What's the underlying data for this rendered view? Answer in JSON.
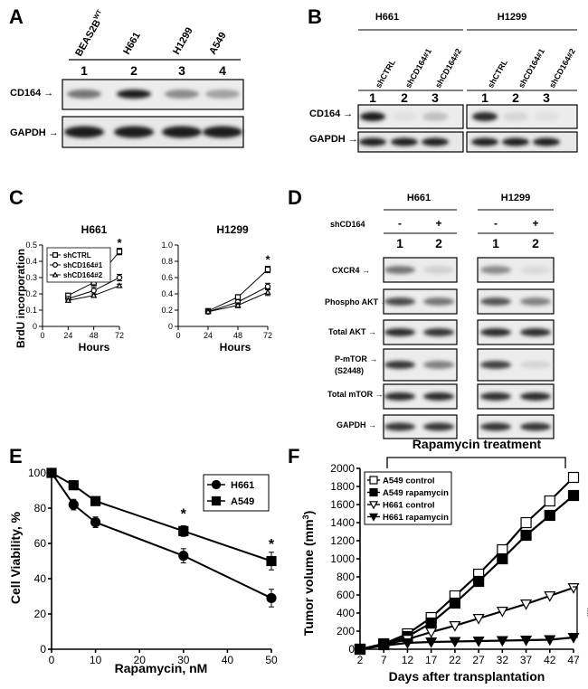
{
  "panelA": {
    "label": "A",
    "lanes": [
      "BEAS2B",
      "H661",
      "H1299",
      "A549"
    ],
    "lane_superscript": "WT",
    "lane_numbers": [
      "1",
      "2",
      "3",
      "4"
    ],
    "rows": [
      "CD164",
      "GAPDH"
    ],
    "cd164_intensity": [
      0.55,
      0.95,
      0.45,
      0.35
    ]
  },
  "panelB": {
    "label": "B",
    "groups": [
      "H661",
      "H1299"
    ],
    "lanes": [
      "shCTRL",
      "shCD164#1",
      "shCD164#2"
    ],
    "lane_numbers": [
      "1",
      "2",
      "3"
    ],
    "rows": [
      "CD164",
      "GAPDH"
    ],
    "cd164_intensity": [
      [
        0.95,
        0.05,
        0.2
      ],
      [
        0.9,
        0.1,
        0.05
      ]
    ]
  },
  "panelC": {
    "label": "C",
    "ylabel": "BrdU incorporation",
    "xlabel": "Hours",
    "legend": [
      "shCTRL",
      "shCD164#1",
      "shCD164#2"
    ],
    "star": "*"
  },
  "panelD": {
    "label": "D",
    "groups": [
      "H661",
      "H1299"
    ],
    "condition": "shCD164",
    "signs": [
      "-",
      "+",
      "-",
      "+"
    ],
    "lane_numbers": [
      "1",
      "2",
      "1",
      "2"
    ],
    "rows": [
      "CXCR4",
      "Phospho AKT",
      "Total AKT",
      "P-mTOR",
      "Total mTOR",
      "GAPDH"
    ],
    "ptor_sub": "(S2448)"
  },
  "panelE": {
    "label": "E",
    "ylabel": "Cell Viability, %",
    "xlabel": "Rapamycin, nM",
    "legend": [
      "H661",
      "A549"
    ],
    "star": "*"
  },
  "panelF": {
    "label": "F",
    "treatment": "Rapamycin treatment",
    "ylabel": "Tumor volume (mm",
    "ylabel_sup": "3",
    "ylabel_end": ")",
    "xlabel": "Days after transplantation",
    "legend": [
      "A549 control",
      "A549 rapamycin",
      "H661 control",
      "H661 rapamycin"
    ],
    "sig": "**"
  },
  "chart_data": [
    {
      "type": "line",
      "title": "H661",
      "xlabel": "Hours",
      "ylabel": "BrdU incorporation",
      "x": [
        0,
        24,
        48,
        72
      ],
      "xlim": [
        0,
        72
      ],
      "ylim": [
        0,
        0.5
      ],
      "yticks": [
        0,
        0.1,
        0.2,
        0.3,
        0.4,
        0.5
      ],
      "xticks": [
        0,
        24,
        48,
        72
      ],
      "legend_position": "upper-left",
      "series": [
        {
          "name": "shCTRL",
          "x": [
            24,
            48,
            72
          ],
          "values": [
            0.19,
            0.27,
            0.46
          ],
          "err": [
            0.01,
            0.02,
            0.02
          ]
        },
        {
          "name": "shCD164#1",
          "x": [
            24,
            48,
            72
          ],
          "values": [
            0.17,
            0.22,
            0.3
          ],
          "err": [
            0.01,
            0.02,
            0.02
          ]
        },
        {
          "name": "shCD164#2",
          "x": [
            24,
            48,
            72
          ],
          "values": [
            0.16,
            0.19,
            0.25
          ],
          "err": [
            0.01,
            0.01,
            0.01
          ]
        }
      ]
    },
    {
      "type": "line",
      "title": "H1299",
      "xlabel": "Hours",
      "x": [
        0,
        24,
        48,
        72
      ],
      "xlim": [
        0,
        72
      ],
      "ylim": [
        0,
        1.0
      ],
      "yticks": [
        0,
        0.2,
        0.4,
        0.6,
        0.8,
        1.0
      ],
      "xticks": [
        0,
        24,
        48,
        72
      ],
      "series": [
        {
          "name": "shCTRL",
          "x": [
            24,
            48,
            72
          ],
          "values": [
            0.19,
            0.36,
            0.7
          ],
          "err": [
            0.02,
            0.03,
            0.04
          ]
        },
        {
          "name": "shCD164#1",
          "x": [
            24,
            48,
            72
          ],
          "values": [
            0.18,
            0.3,
            0.49
          ],
          "err": [
            0.02,
            0.03,
            0.04
          ]
        },
        {
          "name": "shCD164#2",
          "x": [
            24,
            48,
            72
          ],
          "values": [
            0.18,
            0.26,
            0.42
          ],
          "err": [
            0.02,
            0.03,
            0.04
          ]
        }
      ]
    },
    {
      "type": "line",
      "xlabel": "Rapamycin, nM",
      "ylabel": "Cell Viability, %",
      "xlim": [
        0,
        50
      ],
      "ylim": [
        0,
        100
      ],
      "xticks": [
        0,
        10,
        20,
        30,
        40,
        50
      ],
      "yticks": [
        0,
        20,
        40,
        60,
        80,
        100
      ],
      "legend_position": "top-right",
      "series": [
        {
          "name": "H661",
          "x": [
            0,
            5,
            10,
            30,
            50
          ],
          "values": [
            100,
            82,
            72,
            53,
            29
          ],
          "err": [
            0,
            3,
            3,
            4,
            5
          ]
        },
        {
          "name": "A549",
          "x": [
            0,
            5,
            10,
            30,
            50
          ],
          "values": [
            100,
            93,
            84,
            67,
            50
          ],
          "err": [
            0,
            2,
            2,
            3,
            5
          ]
        }
      ]
    },
    {
      "type": "line",
      "xlabel": "Days after transplantation",
      "ylabel": "Tumor volume (mm3)",
      "xlim": [
        2,
        47
      ],
      "ylim": [
        0,
        2000
      ],
      "xticks": [
        2,
        7,
        12,
        17,
        22,
        27,
        32,
        37,
        42,
        47
      ],
      "yticks": [
        0,
        200,
        400,
        600,
        800,
        1000,
        1200,
        1400,
        1600,
        1800,
        2000
      ],
      "legend_position": "top-left",
      "series": [
        {
          "name": "A549 control",
          "x": [
            2,
            7,
            12,
            17,
            22,
            27,
            32,
            37,
            42,
            47
          ],
          "values": [
            0,
            60,
            170,
            350,
            590,
            830,
            1100,
            1400,
            1640,
            1900
          ]
        },
        {
          "name": "A549 rapamycin",
          "x": [
            2,
            7,
            12,
            17,
            22,
            27,
            32,
            37,
            42,
            47
          ],
          "values": [
            0,
            50,
            140,
            290,
            510,
            750,
            1000,
            1260,
            1480,
            1700
          ]
        },
        {
          "name": "H661 control",
          "x": [
            2,
            7,
            12,
            17,
            22,
            27,
            32,
            37,
            42,
            47
          ],
          "values": [
            0,
            45,
            110,
            190,
            260,
            340,
            420,
            500,
            590,
            680
          ]
        },
        {
          "name": "H661 rapamycin",
          "x": [
            2,
            7,
            12,
            17,
            22,
            27,
            32,
            37,
            42,
            47
          ],
          "values": [
            0,
            40,
            70,
            80,
            85,
            90,
            95,
            100,
            105,
            130
          ]
        }
      ]
    }
  ]
}
